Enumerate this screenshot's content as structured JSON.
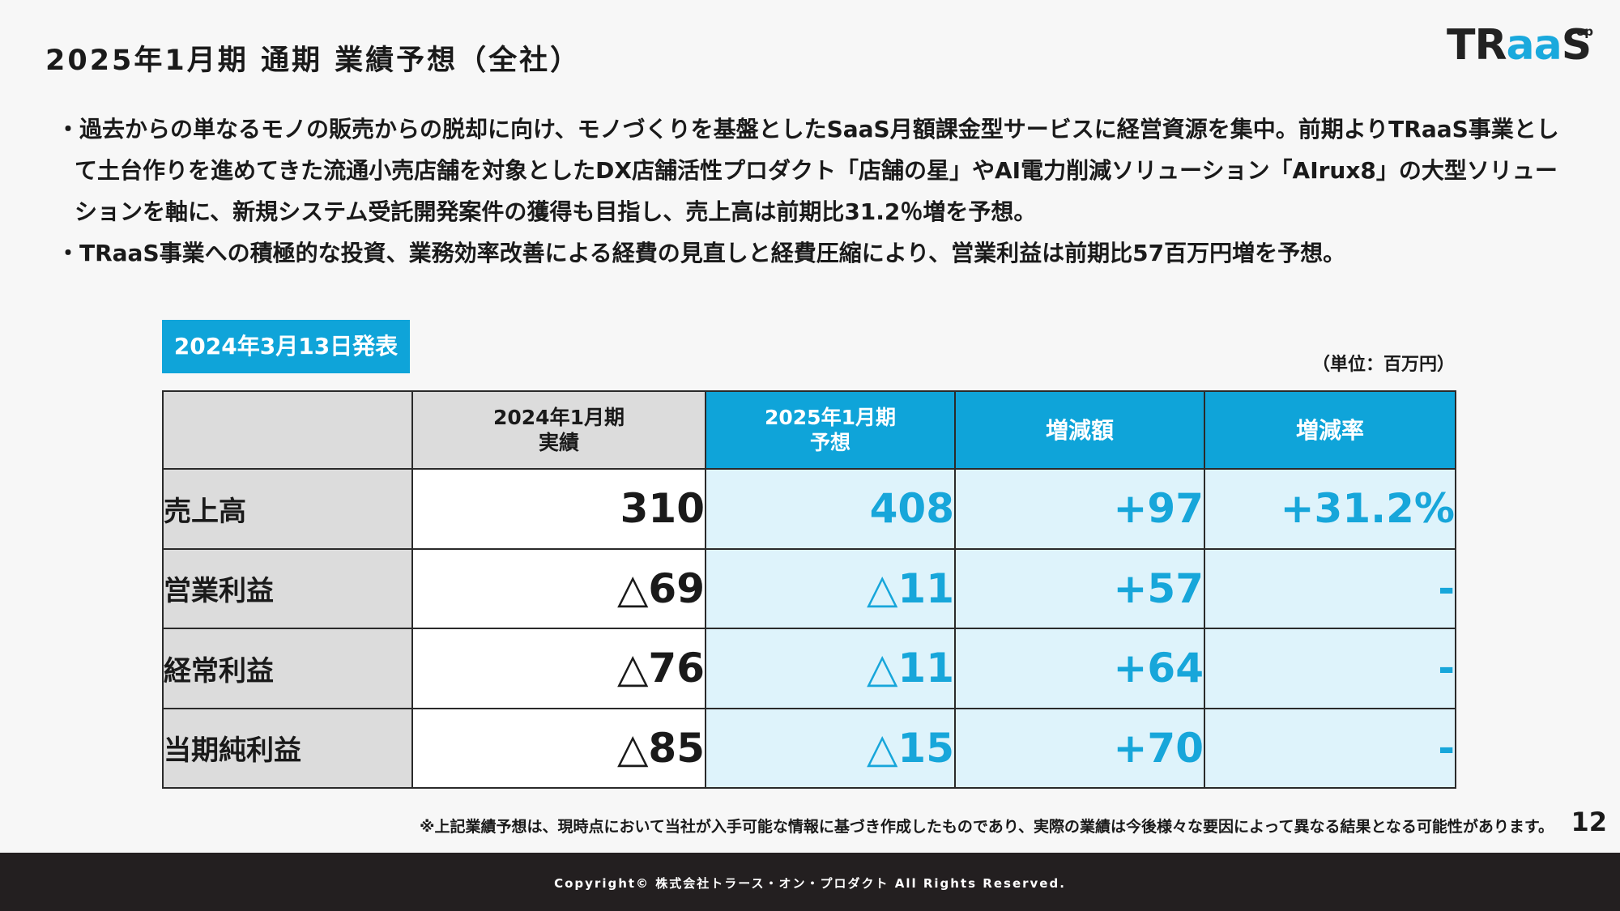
{
  "header": {
    "title": "2025年1月期 通期 業績予想（全社）"
  },
  "logo": {
    "part1": "TR",
    "part2": "aa",
    "part3": "S",
    "superscript": "op"
  },
  "bullets": [
    "・過去からの単なるモノの販売からの脱却に向け、モノづくりを基盤としたSaaS月額課金型サービスに経営資源を集中。前期よりTRaaS事業として土台作りを進めてきた流通小売店舗を対象としたDX店舗活性プロダクト「店舗の星」やAI電力削減ソリューション「AIrux8」の大型ソリューションを軸に、新規システム受託開発案件の獲得も目指し、売上高は前期比31.2％増を予想。",
    "・TRaaS事業への積極的な投資、業務効率改善による経費の見直しと経費圧縮により、営業利益は前期比57百万円増を予想。"
  ],
  "badge": {
    "label": "2024年3月13日発表"
  },
  "unit": {
    "label": "（単位：百万円）"
  },
  "table": {
    "headers": {
      "actual_line1": "2024年1月期",
      "actual_line2": "実績",
      "forecast_line1": "2025年1月期",
      "forecast_line2": "予想",
      "change_amount": "増減額",
      "change_rate": "増減率"
    },
    "rows": [
      {
        "label": "売上高",
        "actual": "310",
        "forecast": "408",
        "change_amount": "+97",
        "change_rate": "+31.2%"
      },
      {
        "label": "営業利益",
        "actual": "△69",
        "forecast": "△11",
        "change_amount": "+57",
        "change_rate": "-"
      },
      {
        "label": "経常利益",
        "actual": "△76",
        "forecast": "△11",
        "change_amount": "+64",
        "change_rate": "-"
      },
      {
        "label": "当期純利益",
        "actual": "△85",
        "forecast": "△15",
        "change_amount": "+70",
        "change_rate": "-"
      }
    ]
  },
  "footnote": "※上記業績予想は、現時点において当社が入手可能な情報に基づき作成したものであり、実際の業績は今後様々な要因によって異なる結果となる可能性があります。",
  "page_number": "12",
  "footer": {
    "copyright": "Copyright© 株式会社トラース・オン・プロダクト All Rights Reserved."
  },
  "colors": {
    "accent": "#0fa4d9",
    "forecast_text": "#17a6da",
    "forecast_bg": "#def3fb",
    "label_bg": "#dcdcdc",
    "footer_bg": "#231f20"
  }
}
